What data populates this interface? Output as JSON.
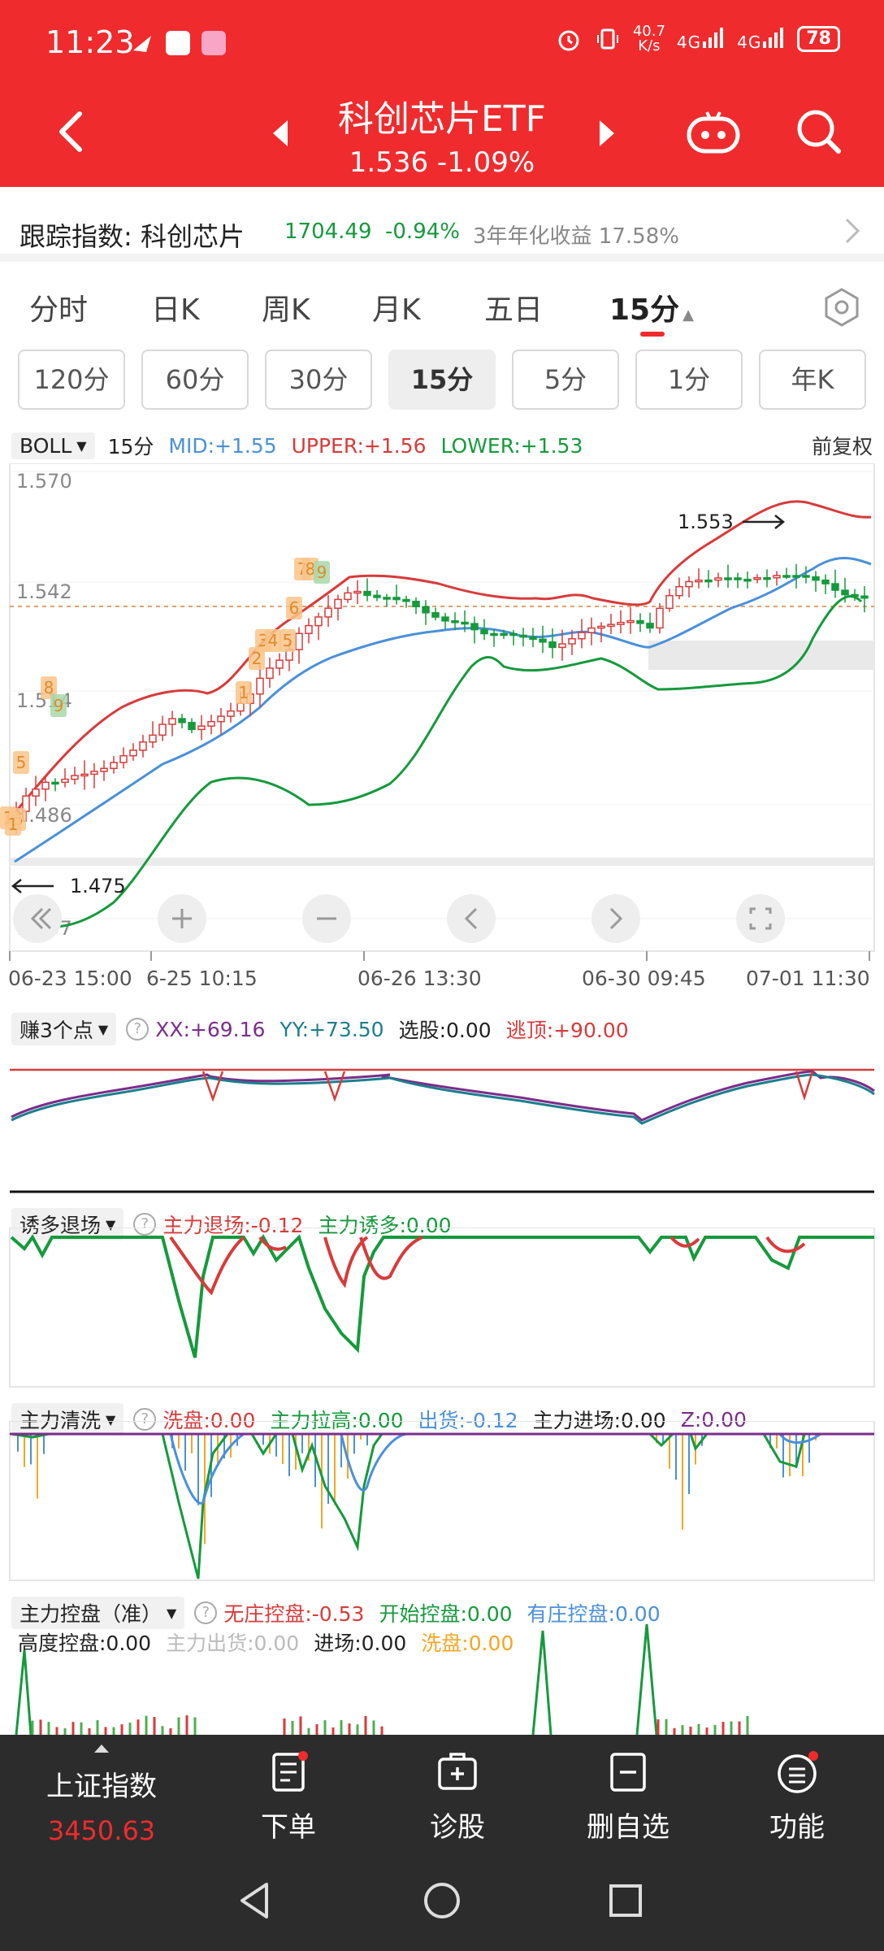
{
  "status_bar": {
    "time": "11:23",
    "net_speed_value": "40.7",
    "net_speed_unit": "K/s",
    "sig1": "4G",
    "sig2": "4G",
    "battery": "78"
  },
  "header": {
    "title": "科创芯片ETF",
    "quote": "1.536  -1.09%"
  },
  "tracking": {
    "label": "跟踪指数: 科创芯片",
    "index_value": "1704.49",
    "index_change": "-0.94%",
    "annual_return": "3年年化收益 17.58%"
  },
  "period_tabs": [
    "分时",
    "日K",
    "周K",
    "月K",
    "五日",
    "15分"
  ],
  "active_period": "15分",
  "sub_periods": [
    "120分",
    "60分",
    "30分",
    "15分",
    "5分",
    "1分",
    "年K"
  ],
  "boll_bar": {
    "name": "BOLL",
    "period": "15分",
    "mid": "MID:+1.55",
    "upper": "UPPER:+1.56",
    "lower": "LOWER:+1.53",
    "adjust": "前复权"
  },
  "main_chart": {
    "y_labels": [
      "1.570",
      "1.542",
      "1.514",
      "1.486",
      "1.457"
    ],
    "high_label": "1.553",
    "low_label": "1.475",
    "x_labels": [
      "06-23 15:00",
      "6-25 10:15",
      "06-26 13:30",
      "06-30 09:45",
      "07-01 11:30"
    ],
    "signal_labels": [
      "5",
      "6",
      "8",
      "1",
      "2",
      "3",
      "4",
      "5",
      "6",
      "7",
      "8",
      "9",
      "1",
      "1",
      "9"
    ]
  },
  "ind1": {
    "name": "赚3个点",
    "xx": "XX:+69.16",
    "yy": "YY:+73.50",
    "xg": "选股:0.00",
    "tt": "逃顶:+90.00"
  },
  "ind2": {
    "name": "诱多退场",
    "exit": "主力退场:-0.12",
    "lure": "主力诱多:0.00"
  },
  "ind3": {
    "name": "主力清洗",
    "wash": "洗盘:0.00",
    "pull": "主力拉高:0.00",
    "out": "出货:-0.12",
    "enter": "主力进场:0.00",
    "z": "Z:0.00"
  },
  "ind4": {
    "name": "主力控盘（准）",
    "none": "无庄控盘:-0.53",
    "start": "开始控盘:0.00",
    "has": "有庄控盘:0.00",
    "high": "高度控盘:0.00",
    "ship": "主力出货:0.00",
    "enter": "进场:0.00",
    "wash": "洗盘:0.00"
  },
  "bottom_nav": {
    "index_name": "上证指数",
    "index_value": "3450.63",
    "items": [
      "下单",
      "诊股",
      "删自选",
      "功能"
    ]
  },
  "colors": {
    "red": "#ef2b2d",
    "green": "#159a3c",
    "blue": "#4a90d9",
    "orange": "#f5a623",
    "purple": "#7b2d8b",
    "teal": "#1b7f8c"
  }
}
